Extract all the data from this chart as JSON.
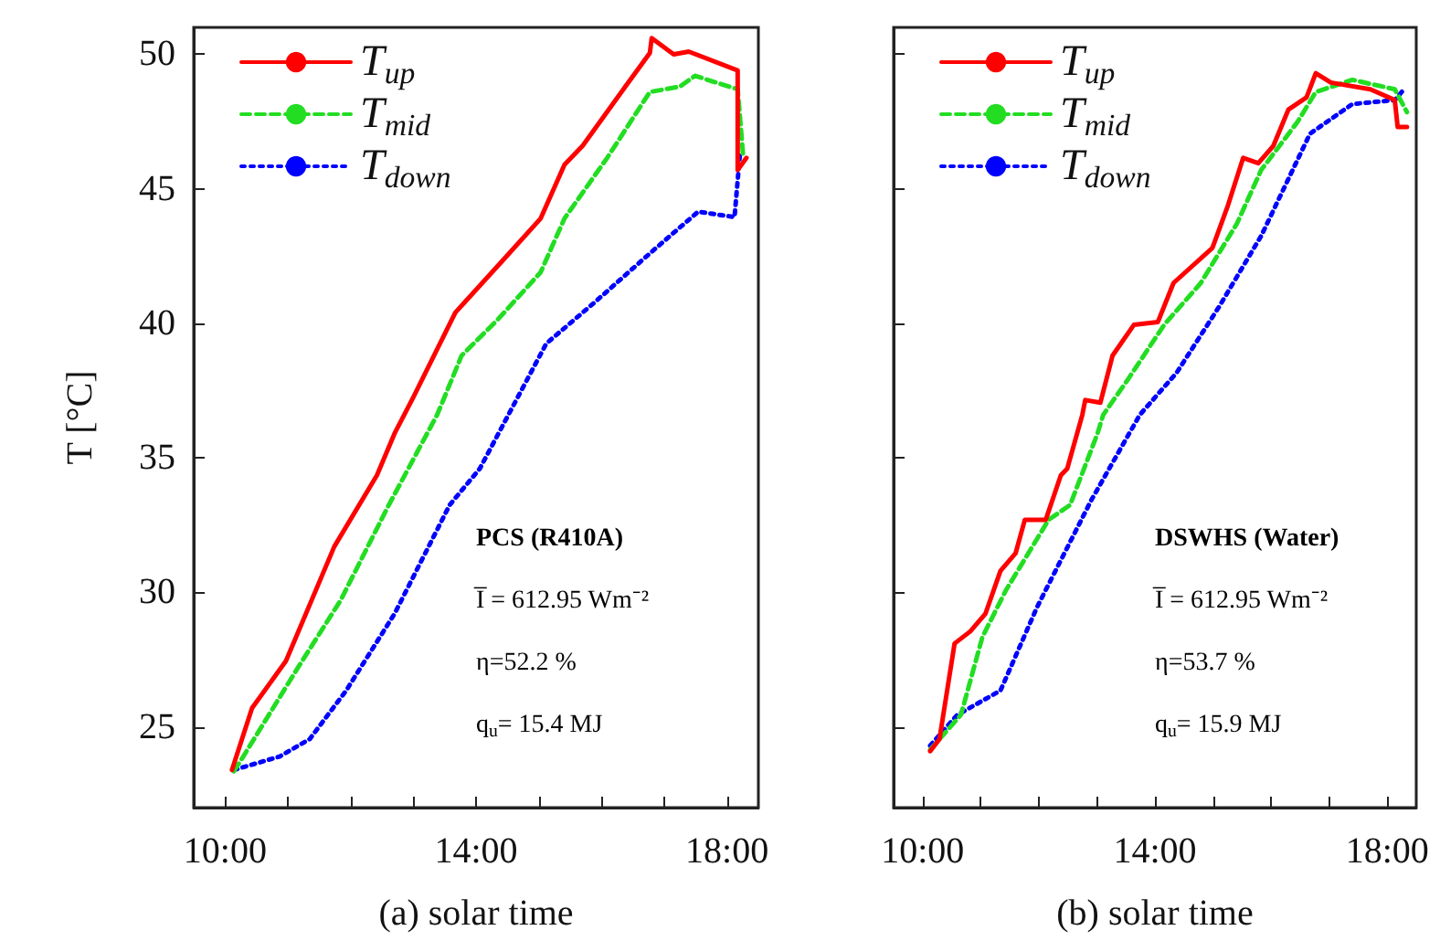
{
  "chart_data": [
    {
      "type": "line",
      "xlabel": "(a) solar time",
      "ylabel": "T [°C]",
      "xlim": [
        9.5,
        18.5
      ],
      "ylim": [
        22,
        51
      ],
      "xticks": [
        {
          "value": 10,
          "label": "10:00"
        },
        {
          "value": 11,
          "label": null
        },
        {
          "value": 12,
          "label": null
        },
        {
          "value": 13,
          "label": null
        },
        {
          "value": 14,
          "label": "14:00"
        },
        {
          "value": 15,
          "label": null
        },
        {
          "value": 16,
          "label": null
        },
        {
          "value": 17,
          "label": null
        },
        {
          "value": 18,
          "label": "18:00"
        }
      ],
      "yticks": [
        25,
        30,
        35,
        40,
        45,
        50
      ],
      "grid": false,
      "legend": "top left",
      "marker": "none",
      "annotations": [
        "PCS (R410A)",
        "I̅ = 612.95 Wm⁻²",
        "η=52.2 %",
        "q$_{u}$= 15.4 MJ"
      ],
      "series": [
        {
          "name": "T$_{up}$",
          "color": "#ff0000",
          "line_style": "solid",
          "x": [
            10.11,
            10.43,
            10.97,
            11.74,
            12.42,
            12.7,
            13.0,
            13.67,
            14.45,
            15.03,
            15.41,
            15.7,
            16.38,
            16.77,
            16.8,
            17.15,
            17.39,
            18.17,
            18.17,
            18.31
          ],
          "values": [
            23.4,
            25.7,
            27.45,
            31.7,
            34.35,
            35.9,
            37.25,
            40.4,
            42.4,
            43.9,
            45.9,
            46.6,
            48.8,
            50.05,
            50.6,
            50.0,
            50.1,
            49.4,
            45.7,
            46.15
          ]
        },
        {
          "name": "T$_{mid}$",
          "color": "#22dd22",
          "line_style": "dashed",
          "x": [
            10.14,
            10.29,
            11.16,
            11.84,
            12.61,
            13.38,
            13.77,
            14.35,
            15.03,
            15.41,
            16.09,
            16.77,
            17.25,
            17.49,
            18.17,
            18.26
          ],
          "values": [
            23.35,
            23.9,
            27.2,
            29.7,
            33.25,
            36.6,
            38.8,
            40.15,
            41.9,
            43.9,
            46.15,
            48.6,
            48.8,
            49.2,
            48.7,
            46.15
          ]
        },
        {
          "name": "T$_{down}$",
          "color": "#0000ff",
          "line_style": "dotted",
          "x": [
            10.14,
            10.87,
            11.35,
            11.93,
            12.7,
            13.58,
            14.06,
            15.12,
            15.9,
            16.77,
            17.54,
            18.12,
            18.21
          ],
          "values": [
            23.4,
            23.9,
            24.55,
            26.35,
            29.2,
            33.25,
            34.6,
            39.25,
            40.8,
            42.6,
            44.15,
            43.95,
            46.4
          ]
        }
      ]
    },
    {
      "type": "line",
      "xlabel": "(b) solar time",
      "xlim": [
        9.5,
        18.5
      ],
      "ylim": [
        22,
        51
      ],
      "xticks": [
        {
          "value": 10,
          "label": "10:00"
        },
        {
          "value": 11,
          "label": null
        },
        {
          "value": 12,
          "label": null
        },
        {
          "value": 13,
          "label": null
        },
        {
          "value": 14,
          "label": "14:00"
        },
        {
          "value": 15,
          "label": null
        },
        {
          "value": 16,
          "label": null
        },
        {
          "value": 17,
          "label": null
        },
        {
          "value": 18,
          "label": "18:00"
        }
      ],
      "yticks": [
        25,
        30,
        35,
        40,
        45,
        50
      ],
      "tick_labels": "x",
      "grid": false,
      "legend": "top left",
      "marker": "none",
      "annotations": [
        "DSWHS (Water)",
        "I̅ = 612.95 Wm⁻²",
        "η=53.7 %",
        "q$_{u}$= 15.9 MJ"
      ],
      "series": [
        {
          "name": "T$_{up}$",
          "color": "#ff0000",
          "line_style": "solid",
          "x": [
            10.13,
            10.29,
            10.55,
            10.82,
            11.08,
            11.34,
            11.6,
            11.76,
            12.12,
            12.38,
            12.49,
            12.75,
            12.8,
            13.06,
            13.27,
            13.64,
            14.05,
            14.32,
            14.99,
            15.26,
            15.52,
            15.78,
            16.04,
            16.3,
            16.61,
            16.77,
            17.03,
            17.71,
            18.13,
            18.18,
            18.34
          ],
          "values": [
            24.1,
            24.55,
            28.1,
            28.55,
            29.2,
            30.8,
            31.45,
            32.7,
            32.7,
            34.35,
            34.6,
            36.6,
            37.15,
            37.05,
            38.8,
            39.95,
            40.05,
            41.5,
            42.8,
            44.4,
            46.15,
            45.95,
            46.6,
            47.95,
            48.4,
            49.3,
            48.95,
            48.7,
            48.3,
            47.3,
            47.3
          ]
        },
        {
          "name": "T$_{mid}$",
          "color": "#22dd22",
          "line_style": "dashed",
          "x": [
            10.13,
            10.66,
            11.03,
            11.44,
            12.17,
            12.54,
            13.01,
            13.11,
            13.53,
            14.16,
            14.79,
            15.41,
            15.83,
            16.46,
            16.77,
            17.4,
            18.13,
            18.34
          ],
          "values": [
            24.15,
            25.45,
            28.35,
            30.1,
            32.7,
            33.25,
            35.9,
            36.6,
            37.9,
            39.95,
            41.5,
            43.7,
            45.7,
            47.5,
            48.6,
            49.05,
            48.7,
            47.85
          ]
        },
        {
          "name": "T$_{down}$",
          "color": "#0000ff",
          "line_style": "dotted",
          "x": [
            10.13,
            10.6,
            11.34,
            11.97,
            12.91,
            13.74,
            14.37,
            15.1,
            15.83,
            16.67,
            17.4,
            18.13,
            18.29
          ],
          "values": [
            24.3,
            25.45,
            26.35,
            29.45,
            33.45,
            36.6,
            38.15,
            40.6,
            43.25,
            47.05,
            48.15,
            48.3,
            48.7
          ]
        }
      ]
    }
  ]
}
